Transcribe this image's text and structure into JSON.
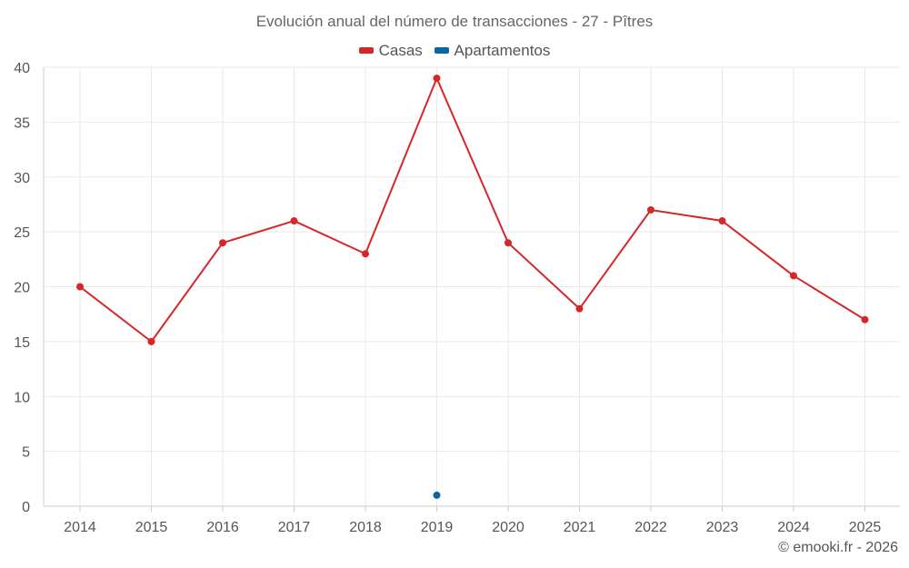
{
  "chart_data": {
    "type": "line",
    "title": "Evolución anual del número de transacciones - 27 - Pîtres",
    "categories": [
      "2014",
      "2015",
      "2016",
      "2017",
      "2018",
      "2019",
      "2020",
      "2021",
      "2022",
      "2023",
      "2024",
      "2025"
    ],
    "series": [
      {
        "name": "Casas",
        "color": "#d62728",
        "values": [
          20,
          15,
          24,
          26,
          23,
          39,
          24,
          18,
          27,
          26,
          21,
          17
        ]
      },
      {
        "name": "Apartamentos",
        "color": "#0a66a0",
        "values": [
          null,
          null,
          null,
          null,
          null,
          1,
          null,
          null,
          null,
          null,
          null,
          null
        ]
      }
    ],
    "ylim": [
      0,
      40
    ],
    "yticks": [
      0,
      5,
      10,
      15,
      20,
      25,
      30,
      35,
      40
    ],
    "grid": true,
    "legend_position": "top-center",
    "xlabel": "",
    "ylabel": ""
  },
  "legend": {
    "casas": "Casas",
    "apartamentos": "Apartamentos"
  },
  "credit": "© emooki.fr - 2026",
  "colors": {
    "casas": "#d62728",
    "apartamentos": "#0a66a0",
    "grid": "#e9e9e9"
  }
}
